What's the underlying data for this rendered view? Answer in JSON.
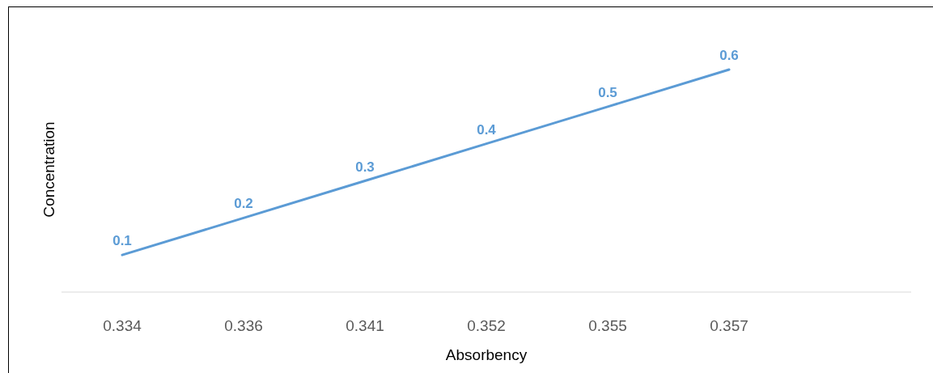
{
  "chart_data": {
    "type": "line",
    "xlabel": "Absorbency",
    "ylabel": "Concentration",
    "categories": [
      "0.334",
      "0.336",
      "0.341",
      "0.352",
      "0.355",
      "0.357",
      null
    ],
    "series": [
      {
        "color": "#5b9bd5",
        "values": [
          0.1,
          0.2,
          0.3,
          0.4,
          0.5,
          0.6,
          null
        ]
      }
    ],
    "tick_labels": "x",
    "data_labels": true,
    "line_style": "solid"
  }
}
